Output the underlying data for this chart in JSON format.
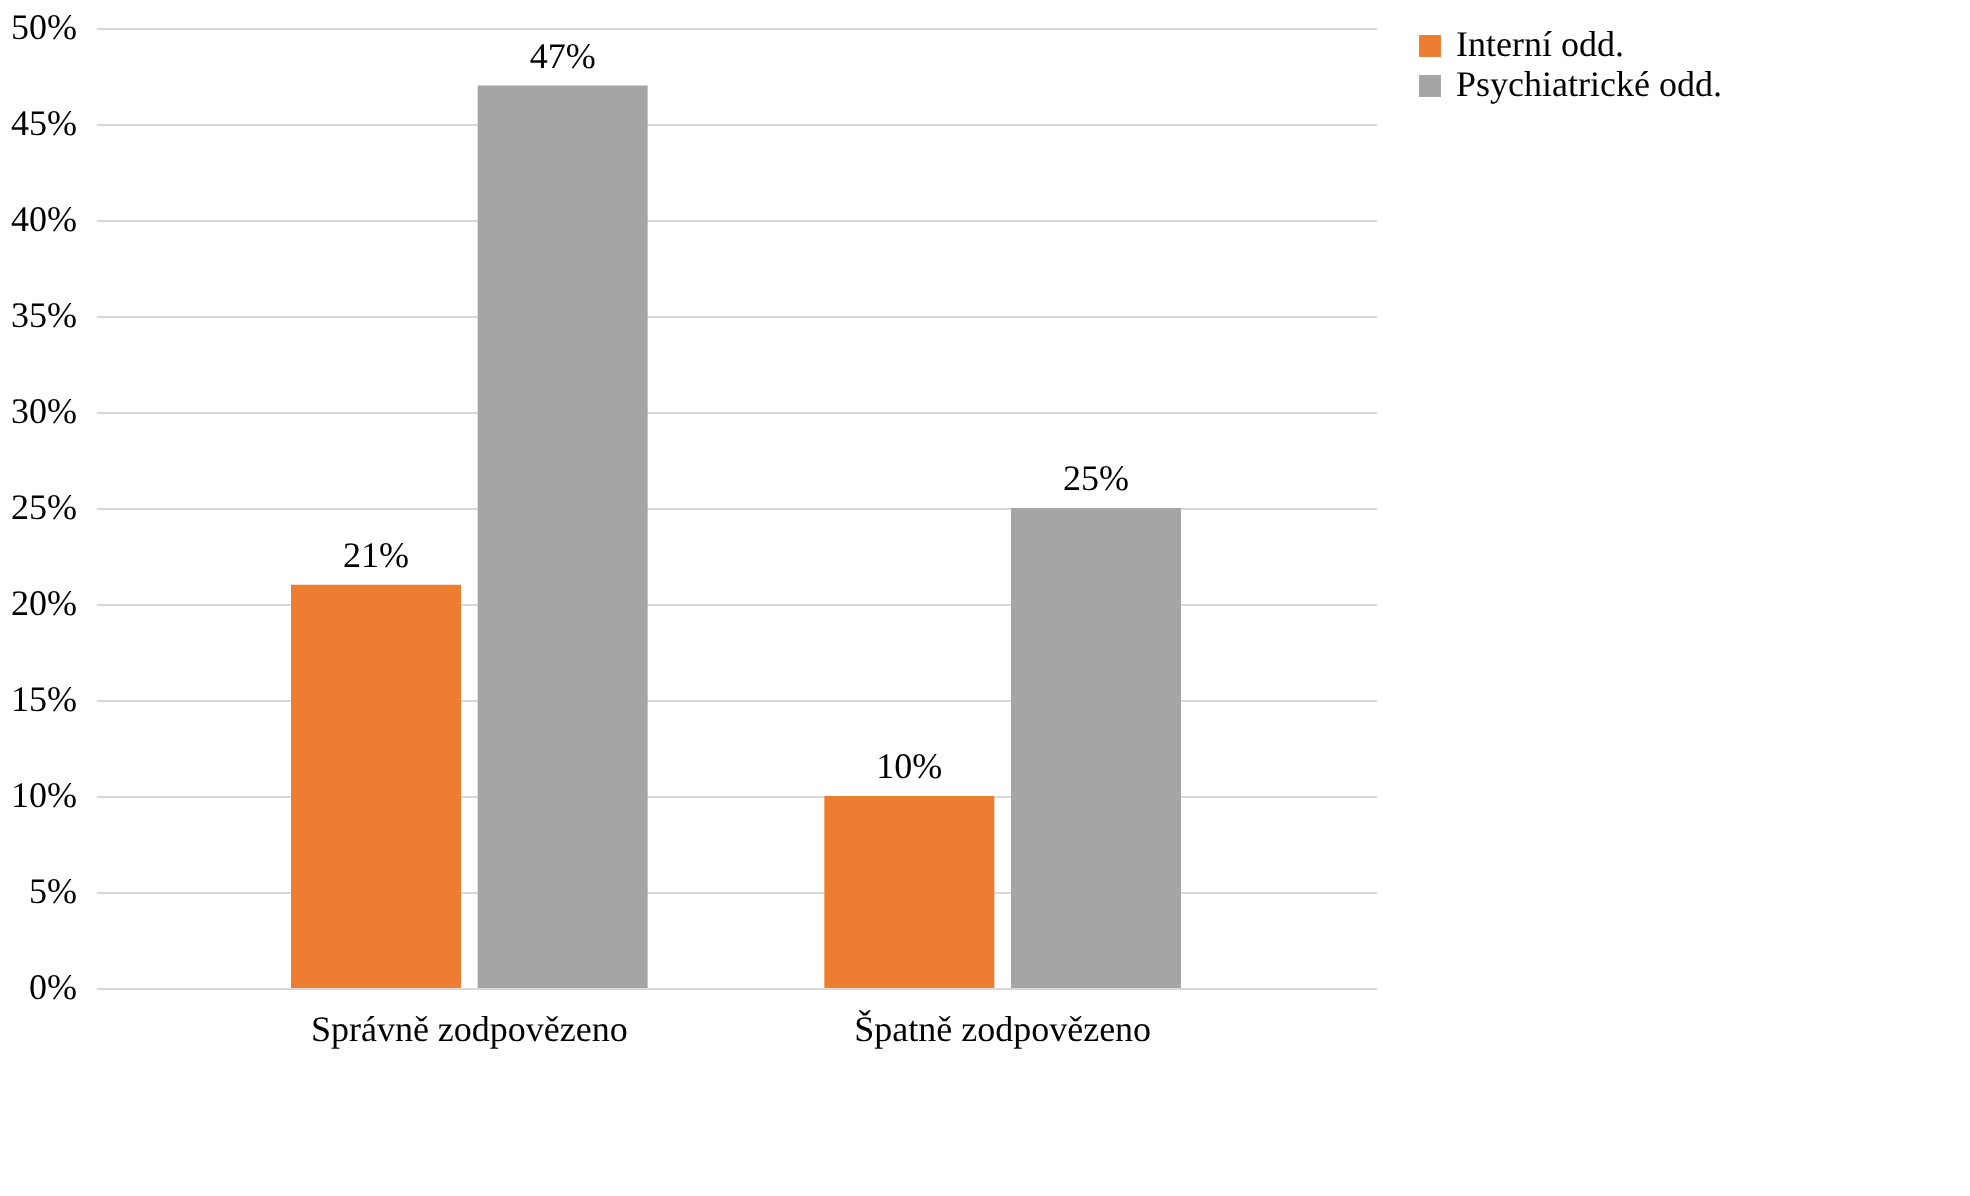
{
  "chart_data": {
    "type": "bar",
    "categories": [
      "Správně zodpovězeno",
      "Špatně zodpovězeno"
    ],
    "series": [
      {
        "name": "Interní odd.",
        "color": "#ed7d31",
        "values": [
          21,
          10
        ],
        "value_labels": [
          "21%",
          "10%"
        ]
      },
      {
        "name": "Psychiatrické odd.",
        "color": "#a5a5a5",
        "values": [
          47,
          25
        ],
        "value_labels": [
          "47%",
          "25%"
        ]
      }
    ],
    "ylim": [
      0,
      50
    ],
    "yticks": [
      {
        "value": 0,
        "label": "0%"
      },
      {
        "value": 5,
        "label": "5%"
      },
      {
        "value": 10,
        "label": "10%"
      },
      {
        "value": 15,
        "label": "15%"
      },
      {
        "value": 20,
        "label": "20%"
      },
      {
        "value": 25,
        "label": "25%"
      },
      {
        "value": 30,
        "label": "30%"
      },
      {
        "value": 35,
        "label": "35%"
      },
      {
        "value": 40,
        "label": "40%"
      },
      {
        "value": 45,
        "label": "45%"
      },
      {
        "value": 50,
        "label": "50%"
      }
    ],
    "grid": "y",
    "legend": "right"
  }
}
